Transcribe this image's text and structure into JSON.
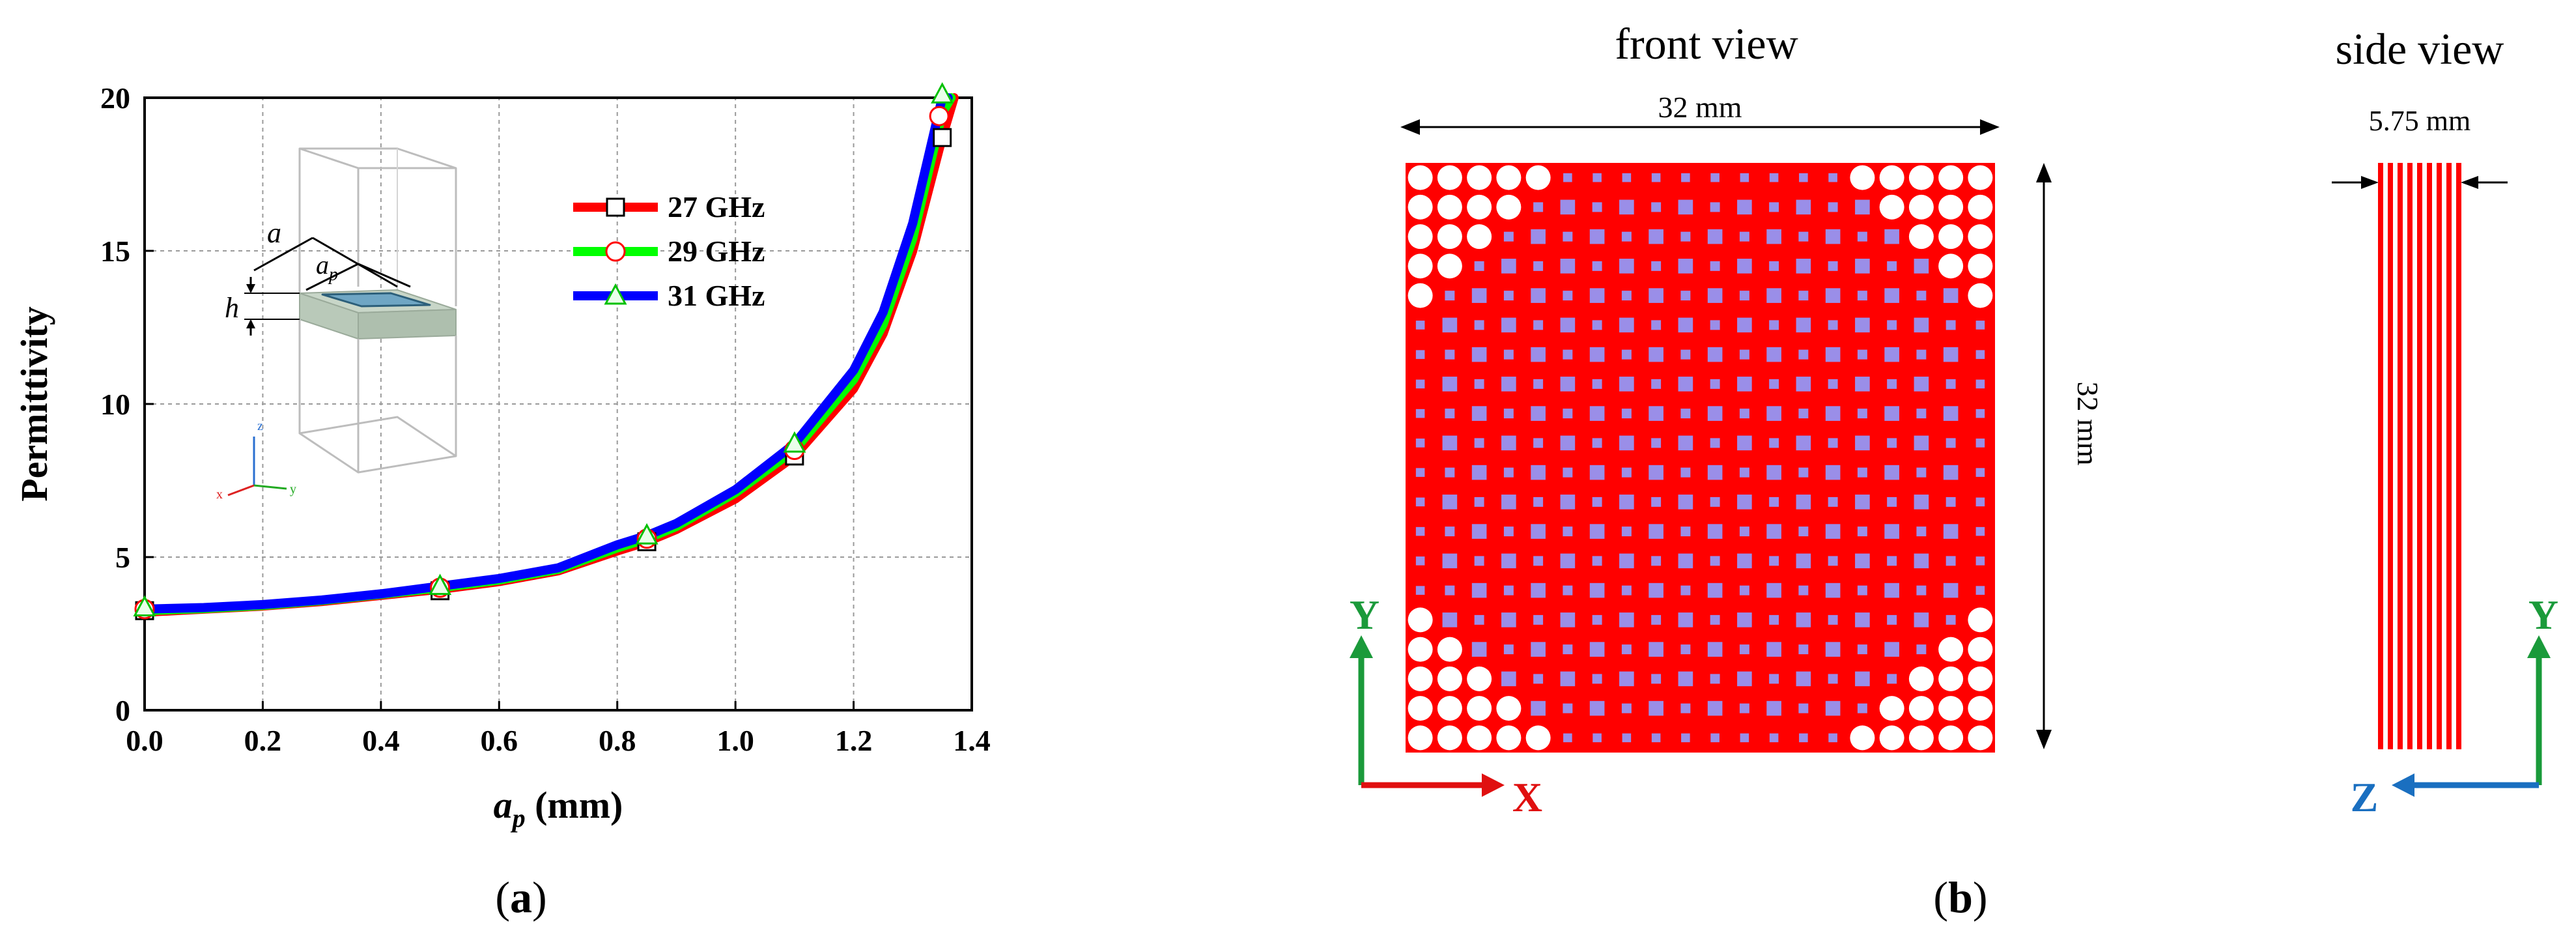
{
  "panels": {
    "a": {
      "label_open": "(",
      "label_letter": "a",
      "label_close": ")"
    },
    "b": {
      "label_open": "(",
      "label_letter": "b",
      "label_close": ")"
    }
  },
  "chart_data": {
    "type": "line",
    "xlabel_main": "a",
    "xlabel_sub": "p",
    "xlabel_unit": " (mm)",
    "ylabel": "Permittivity",
    "xlim": [
      0,
      1.4
    ],
    "ylim": [
      0,
      20
    ],
    "xticks": [
      "0.0",
      "0.2",
      "0.4",
      "0.6",
      "0.8",
      "1.0",
      "1.2",
      "1.4"
    ],
    "yticks": [
      "0",
      "5",
      "10",
      "15",
      "20"
    ],
    "grid": true,
    "legend_position": "top-center",
    "series": [
      {
        "name": "27 GHz",
        "color": "#ff0000",
        "marker": "square",
        "x": [
          0,
          0.1,
          0.2,
          0.3,
          0.4,
          0.5,
          0.6,
          0.7,
          0.8,
          0.85,
          0.9,
          1.0,
          1.1,
          1.2,
          1.25,
          1.3,
          1.35,
          1.37
        ],
        "y": [
          3.2,
          3.3,
          3.4,
          3.55,
          3.75,
          3.95,
          4.2,
          4.55,
          5.2,
          5.5,
          5.9,
          6.9,
          8.3,
          10.5,
          12.3,
          15.0,
          18.7,
          20.0
        ],
        "markers_x": [
          0,
          0.5,
          0.85,
          1.1,
          1.35
        ],
        "markers_y": [
          3.25,
          3.9,
          5.5,
          8.3,
          18.7
        ]
      },
      {
        "name": "29 GHz",
        "color": "#00ff00",
        "marker": "circle",
        "x": [
          0,
          0.1,
          0.2,
          0.3,
          0.4,
          0.5,
          0.6,
          0.7,
          0.8,
          0.85,
          0.9,
          1.0,
          1.1,
          1.2,
          1.25,
          1.3,
          1.35,
          1.365
        ],
        "y": [
          3.25,
          3.32,
          3.42,
          3.58,
          3.78,
          4.0,
          4.25,
          4.6,
          5.3,
          5.6,
          6.0,
          7.1,
          8.5,
          10.8,
          12.6,
          15.4,
          19.5,
          20.0
        ],
        "markers_x": [
          0,
          0.5,
          0.85,
          1.1,
          1.345
        ],
        "markers_y": [
          3.3,
          4.0,
          5.6,
          8.5,
          19.4
        ]
      },
      {
        "name": "31 GHz",
        "color": "#0000ff",
        "marker": "triangle",
        "x": [
          0,
          0.1,
          0.2,
          0.3,
          0.4,
          0.5,
          0.6,
          0.7,
          0.8,
          0.85,
          0.9,
          1.0,
          1.1,
          1.2,
          1.25,
          1.3,
          1.35,
          1.36
        ],
        "y": [
          3.3,
          3.35,
          3.45,
          3.6,
          3.8,
          4.05,
          4.3,
          4.65,
          5.4,
          5.7,
          6.1,
          7.2,
          8.7,
          11.1,
          13.0,
          15.9,
          20.0,
          20.0
        ],
        "markers_x": [
          0,
          0.5,
          0.85,
          1.1,
          1.35
        ],
        "markers_y": [
          3.35,
          4.05,
          5.7,
          8.7,
          20.1
        ]
      }
    ]
  },
  "inset": {
    "label_a": "a",
    "label_ap_main": "a",
    "label_ap_sub": "p",
    "label_h": "h",
    "axis_z": "z",
    "axis_x": "x",
    "axis_y": "y"
  },
  "front_view": {
    "title": "front view",
    "width_label": "32 mm",
    "height_label": "32 mm",
    "axis_y": "Y",
    "axis_x": "X",
    "grid_n": 20,
    "color_bg": "#ff0000",
    "color_patch": "#9a8ee8",
    "color_hole": "#ffffff"
  },
  "side_view": {
    "title": "side view",
    "thickness_label": "5.75 mm",
    "axis_y": "Y",
    "axis_z": "Z",
    "layers": 9
  }
}
